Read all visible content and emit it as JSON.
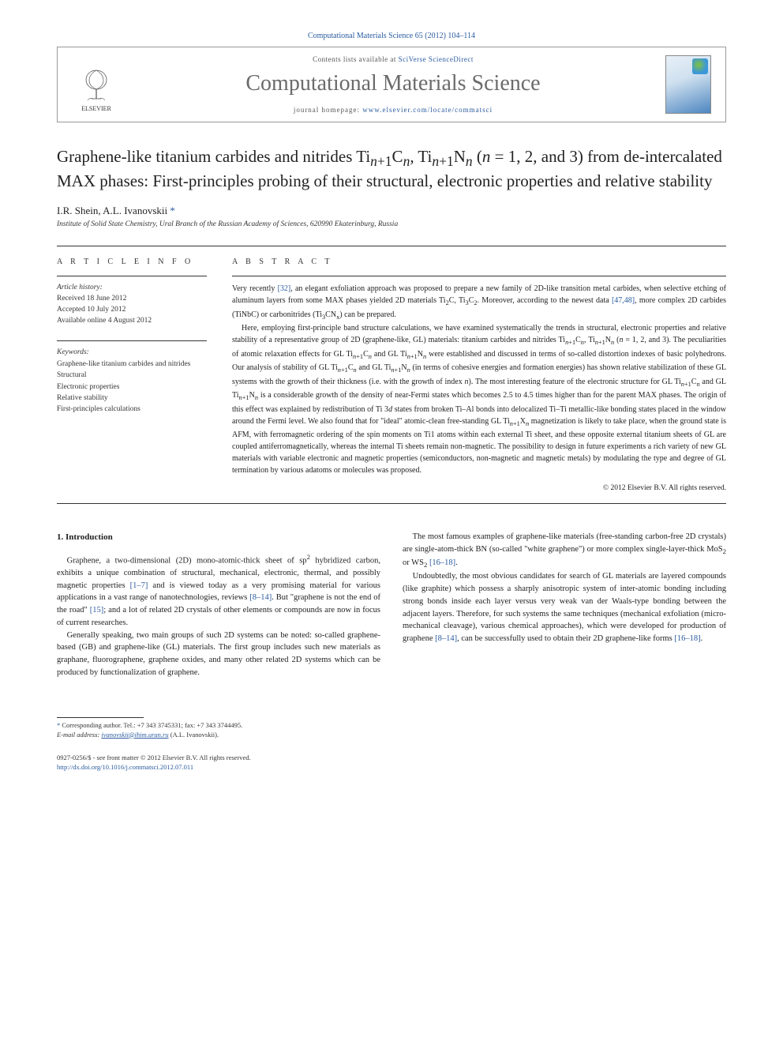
{
  "header": {
    "journal_ref": "Computational Materials Science 65 (2012) 104–114",
    "contents_line_prefix": "Contents lists available at ",
    "contents_line_link": "SciVerse ScienceDirect",
    "journal_title": "Computational Materials Science",
    "homepage_prefix": "journal homepage: ",
    "homepage_url": "www.elsevier.com/locate/commatsci",
    "publisher_logo_label": "ELSEVIER"
  },
  "article": {
    "title_html": "Graphene-like titanium carbides and nitrides Ti<sub><i>n</i>+1</sub>C<sub><i>n</i></sub>, Ti<sub><i>n</i>+1</sub>N<sub><i>n</i></sub> (<i>n</i> = 1, 2, and 3) from de-intercalated MAX phases: First-principles probing of their structural, electronic properties and relative stability",
    "authors_html": "I.R. Shein, A.L. Ivanovskii <span class=\"corr\">*</span>",
    "affiliation": "Institute of Solid State Chemistry, Ural Branch of the Russian Academy of Sciences, 620990 Ekaterinburg, Russia"
  },
  "info": {
    "heading": "A R T I C L E   I N F O",
    "history_label": "Article history:",
    "received": "Received 18 June 2012",
    "accepted": "Accepted 10 July 2012",
    "online": "Available online 4 August 2012",
    "keywords_label": "Keywords:",
    "keywords": [
      "Graphene-like titanium carbides and nitrides",
      "Structural",
      "Electronic properties",
      "Relative stability",
      "First-principles calculations"
    ]
  },
  "abstract": {
    "heading": "A B S T R A C T",
    "para1_html": "Very recently <span class=\"ref\">[32]</span>, an elegant exfoliation approach was proposed to prepare a new family of 2D-like transition metal carbides, when selective etching of aluminum layers from some MAX phases yielded 2D materials Ti<sub>2</sub>C, Ti<sub>3</sub>C<sub>2</sub>. Moreover, according to the newest data <span class=\"ref\">[47,48]</span>, more complex 2D carbides (TiNbC) or carbonitrides (Ti<sub>3</sub>CN<sub>x</sub>) can be prepared.",
    "para2_html": "Here, employing first-principle band structure calculations, we have examined systematically the trends in structural, electronic properties and relative stability of a representative group of 2D (graphene-like, GL) materials: titanium carbides and nitrides Ti<sub><i>n</i>+1</sub>C<sub><i>n</i></sub>, Ti<sub><i>n</i>+1</sub>N<sub><i>n</i></sub> (<i>n</i> = 1, 2, and 3). The peculiarities of atomic relaxation effects for GL Ti<sub><i>n</i>+1</sub>C<sub><i>n</i></sub> and GL Ti<sub><i>n</i>+1</sub>N<sub><i>n</i></sub> were established and discussed in terms of so-called distortion indexes of basic polyhedrons. Our analysis of stability of GL Ti<sub><i>n</i>+1</sub>C<sub><i>n</i></sub> and GL Ti<sub><i>n</i>+1</sub>N<sub><i>n</i></sub> (in terms of cohesive energies and formation energies) has shown relative stabilization of these GL systems with the growth of their thickness (i.e. with the growth of index <i>n</i>). The most interesting feature of the electronic structure for GL Ti<sub><i>n</i>+1</sub>C<sub><i>n</i></sub> and GL Ti<sub><i>n</i>+1</sub>N<sub><i>n</i></sub> is a considerable growth of the density of near-Fermi states which becomes 2.5 to 4.5 times higher than for the parent MAX phases. The origin of this effect was explained by redistribution of Ti 3<i>d</i> states from broken Ti–Al bonds into delocalized Ti–Ti metallic-like bonding states placed in the window around the Fermi level. We also found that for \"ideal\" atomic-clean free-standing GL Ti<sub><i>n</i>+1</sub>X<sub><i>n</i></sub> magnetization is likely to take place, when the ground state is AFM, with ferromagnetic ordering of the spin moments on Ti1 atoms within each external Ti sheet, and these opposite external titanium sheets of GL are coupled antiferromagnetically, whereas the internal Ti sheets remain non-magnetic. The possibility to design in future experiments a rich variety of new GL materials with variable electronic and magnetic properties (semiconductors, non-magnetic and magnetic metals) by modulating the type and degree of GL termination by various adatoms or molecules was proposed.",
    "copyright": "© 2012 Elsevier B.V. All rights reserved."
  },
  "body": {
    "section_heading": "1. Introduction",
    "para1_html": "Graphene, a two-dimensional (2D) mono-atomic-thick sheet of sp<sup>2</sup> hybridized carbon, exhibits a unique combination of structural, mechanical, electronic, thermal, and possibly magnetic properties <span class=\"ref\">[1–7]</span> and is viewed today as a very promising material for various applications in a vast range of nanotechnologies, reviews <span class=\"ref\">[8–14]</span>. But \"graphene is not the end of the road\" <span class=\"ref\">[15]</span>; and a lot of related 2D crystals of other elements or compounds are now in focus of current researches.",
    "para2_html": "Generally speaking, two main groups of such 2D systems can be noted: so-called graphene-based (GB) and graphene-like (GL) materials. The first group includes such new materials as graphane, fluorographene, graphene oxides, and many other related 2D systems which can be produced by functionalization of graphene.",
    "para3_html": "The most famous examples of graphene-like materials (free-standing carbon-free 2D crystals) are single-atom-thick BN (so-called \"white graphene\") or more complex single-layer-thick MoS<sub>2</sub> or WS<sub>2</sub> <span class=\"ref\">[16–18]</span>.",
    "para4_html": "Undoubtedly, the most obvious candidates for search of GL materials are layered compounds (like graphite) which possess a sharply anisotropic system of inter-atomic bonding including strong bonds inside each layer versus very weak van der Waals-type bonding between the adjacent layers. Therefore, for such systems the same techniques (mechanical exfoliation (micro-mechanical cleavage), various chemical approaches), which were developed for production of graphene <span class=\"ref\">[8–14]</span>, can be successfully used to obtain their 2D graphene-like forms <span class=\"ref\">[16–18]</span>."
  },
  "footnote": {
    "corr_line": "Corresponding author. Tel.: +7 343 3745331; fax: +7 343 3744495.",
    "email_label": "E-mail address:",
    "email": "ivanovskii@ihim.uran.ru",
    "email_name": "(A.L. Ivanovskii)."
  },
  "footer": {
    "issn_line": "0927-0256/$ - see front matter © 2012 Elsevier B.V. All rights reserved.",
    "doi": "http://dx.doi.org/10.1016/j.commatsci.2012.07.011"
  },
  "colors": {
    "link": "#2a5b9f",
    "text": "#1a1a1a",
    "muted": "#6b6b6b",
    "rule": "#333333"
  }
}
